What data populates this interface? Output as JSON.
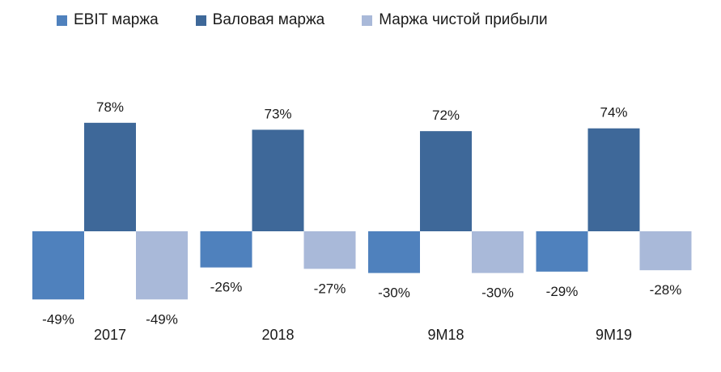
{
  "chart_data": {
    "type": "bar",
    "title": "",
    "xlabel": "",
    "ylabel": "",
    "ylim": [
      -55,
      85
    ],
    "legend_position": "top",
    "categories": [
      "2017",
      "2018",
      "9M18",
      "9M19"
    ],
    "series": [
      {
        "name": "EBIT маржа",
        "color": "#4f81bd",
        "values": [
          -49,
          -26,
          -30,
          -29
        ],
        "labels": [
          "-49%",
          "-26%",
          "-30%",
          "-29%"
        ]
      },
      {
        "name": "Валовая маржа",
        "color": "#3e6899",
        "values": [
          78,
          73,
          72,
          74
        ],
        "labels": [
          "78%",
          "73%",
          "72%",
          "74%"
        ]
      },
      {
        "name": "Маржа чистой прибыли",
        "color": "#a9b9d9",
        "values": [
          -49,
          -27,
          -30,
          -28
        ],
        "labels": [
          "-49%",
          "-27%",
          "-30%",
          "-28%"
        ]
      }
    ]
  }
}
